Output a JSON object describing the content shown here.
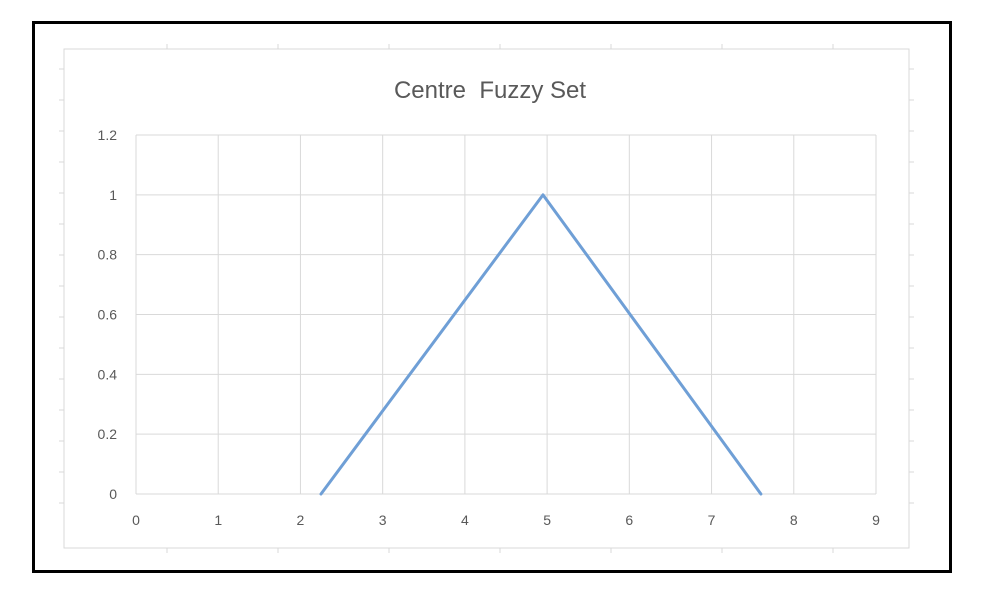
{
  "chart_data": {
    "type": "line",
    "title": "Centre  Fuzzy Set",
    "xlabel": "",
    "ylabel": "",
    "xlim": [
      0,
      9
    ],
    "ylim": [
      0,
      1.2
    ],
    "x_ticks": [
      0,
      1,
      2,
      3,
      4,
      5,
      6,
      7,
      8,
      9
    ],
    "x_tick_labels": [
      "0",
      "1",
      "2",
      "3",
      "4",
      "5",
      "6",
      "7",
      "8",
      "9"
    ],
    "y_ticks": [
      0,
      0.2,
      0.4,
      0.6,
      0.8,
      1,
      1.2
    ],
    "y_tick_labels": [
      "0",
      "0.2",
      "0.4",
      "0.6",
      "0.8",
      "1",
      "1.2"
    ],
    "grid": true,
    "legend": "none",
    "series": [
      {
        "name": "Centre",
        "color": "#6f9fd6",
        "x": [
          2.25,
          4.95,
          7.6
        ],
        "y": [
          0,
          1,
          0
        ]
      }
    ]
  },
  "colors": {
    "grid": "#d9d9d9",
    "text": "#595959",
    "chart_border": "#d9d9d9",
    "frame_border": "#000000"
  }
}
